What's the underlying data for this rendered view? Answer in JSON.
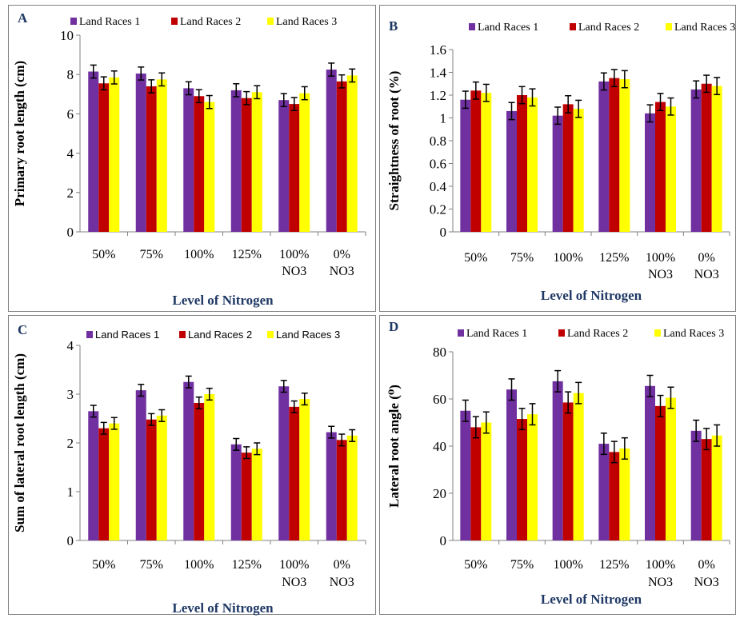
{
  "colors": {
    "series": [
      "#7030A0",
      "#C00000",
      "#FFFF00"
    ],
    "axis": "#808080",
    "axis_title": "#1F3864",
    "error_bar": "#000000"
  },
  "chart_data": [
    {
      "type": "bar",
      "panel_label": "A",
      "categories": [
        [
          "50%"
        ],
        [
          "75%"
        ],
        [
          "100%"
        ],
        [
          "125%"
        ],
        [
          "100%",
          "NO3"
        ],
        [
          "0%",
          "NO3"
        ]
      ],
      "series": [
        {
          "name": "Land Races 1",
          "values": [
            8.15,
            8.05,
            7.3,
            7.2,
            6.7,
            8.25
          ],
          "errors": [
            0.33,
            0.33,
            0.33,
            0.33,
            0.33,
            0.33
          ]
        },
        {
          "name": "Land Races 2",
          "values": [
            7.55,
            7.4,
            6.9,
            6.8,
            6.5,
            7.65
          ],
          "errors": [
            0.33,
            0.33,
            0.33,
            0.33,
            0.33,
            0.33
          ]
        },
        {
          "name": "Land Races 3",
          "values": [
            7.85,
            7.75,
            6.6,
            7.1,
            7.05,
            7.95
          ],
          "errors": [
            0.33,
            0.33,
            0.33,
            0.33,
            0.33,
            0.33
          ]
        }
      ],
      "ylabel": "Primary root length (cm)",
      "xlabel": "Level of Nitrogen",
      "ylim": [
        0,
        10
      ],
      "yticks": [
        "0",
        "2",
        "4",
        "6",
        "8",
        "10"
      ],
      "legend": "top"
    },
    {
      "type": "bar",
      "panel_label": "B",
      "categories": [
        [
          "50%"
        ],
        [
          "75%"
        ],
        [
          "100%"
        ],
        [
          "125%"
        ],
        [
          "100%",
          "NO3"
        ],
        [
          "0%",
          "NO3"
        ]
      ],
      "series": [
        {
          "name": "Land Races 1",
          "values": [
            1.16,
            1.06,
            1.02,
            1.32,
            1.04,
            1.25
          ],
          "errors": [
            0.075,
            0.075,
            0.075,
            0.075,
            0.075,
            0.075
          ]
        },
        {
          "name": "Land Races 2",
          "values": [
            1.24,
            1.2,
            1.12,
            1.35,
            1.14,
            1.3
          ],
          "errors": [
            0.075,
            0.075,
            0.075,
            0.075,
            0.075,
            0.075
          ]
        },
        {
          "name": "Land Races 3",
          "values": [
            1.22,
            1.18,
            1.08,
            1.34,
            1.1,
            1.28
          ],
          "errors": [
            0.075,
            0.075,
            0.075,
            0.075,
            0.075,
            0.075
          ]
        }
      ],
      "ylabel": "Straightness of root (%)",
      "xlabel": "Level of Nitrogen",
      "ylim": [
        0,
        1.6
      ],
      "yticks": [
        "0",
        "0.2",
        "0.4",
        "0.6",
        "0.8",
        "1",
        "1.2",
        "1.4",
        "1.6"
      ],
      "legend": "top"
    },
    {
      "type": "bar",
      "panel_label": "C",
      "categories": [
        [
          "50%"
        ],
        [
          "75%"
        ],
        [
          "100%"
        ],
        [
          "125%"
        ],
        [
          "100%",
          "NO3"
        ],
        [
          "0%",
          "NO3"
        ]
      ],
      "series": [
        {
          "name": "Land Races 1",
          "values": [
            2.65,
            3.08,
            3.25,
            1.97,
            3.16,
            2.22
          ],
          "errors": [
            0.12,
            0.12,
            0.12,
            0.12,
            0.12,
            0.12
          ]
        },
        {
          "name": "Land Races 2",
          "values": [
            2.3,
            2.48,
            2.82,
            1.8,
            2.74,
            2.06
          ],
          "errors": [
            0.12,
            0.12,
            0.12,
            0.12,
            0.12,
            0.12
          ]
        },
        {
          "name": "Land Races 3",
          "values": [
            2.4,
            2.56,
            3.0,
            1.88,
            2.9,
            2.15
          ],
          "errors": [
            0.12,
            0.12,
            0.12,
            0.12,
            0.12,
            0.12
          ]
        }
      ],
      "ylabel": "Sum  of lateral root length (cm)",
      "xlabel": "Level of Nitrogen",
      "ylim": [
        0,
        4
      ],
      "yticks": [
        "0",
        "1",
        "2",
        "3",
        "4"
      ],
      "legend": "top"
    },
    {
      "type": "bar",
      "panel_label": "D",
      "categories": [
        [
          "50%"
        ],
        [
          "75%"
        ],
        [
          "100%"
        ],
        [
          "125%"
        ],
        [
          "100%",
          "NO3"
        ],
        [
          "0%",
          "NO3"
        ]
      ],
      "series": [
        {
          "name": "Land Races 1",
          "values": [
            55,
            64,
            67.5,
            41,
            65.5,
            46.5
          ],
          "errors": [
            4.5,
            4.5,
            4.5,
            4.5,
            4.5,
            4.5
          ]
        },
        {
          "name": "Land Races 2",
          "values": [
            48,
            51.5,
            58.5,
            37.5,
            57,
            43
          ],
          "errors": [
            4.5,
            4.5,
            4.5,
            4.5,
            4.5,
            4.5
          ]
        },
        {
          "name": "Land Races 3",
          "values": [
            50,
            53.5,
            62.5,
            39,
            60.5,
            44.5
          ],
          "errors": [
            4.5,
            4.5,
            4.5,
            4.5,
            4.5,
            4.5
          ]
        }
      ],
      "ylabel": "Lateral root angle (⁰)",
      "xlabel": "Level of Nitrogen",
      "ylim": [
        0,
        80
      ],
      "yticks": [
        "0",
        "20",
        "40",
        "60",
        "80"
      ],
      "legend": "top"
    }
  ]
}
